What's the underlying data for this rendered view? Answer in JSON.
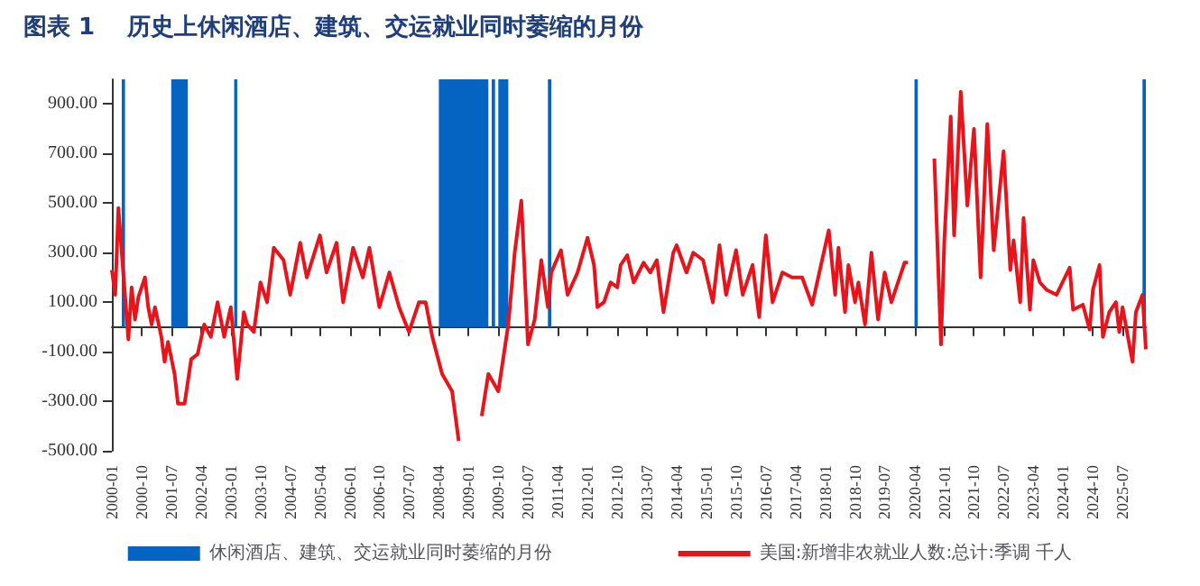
{
  "chart_data": {
    "type": "line",
    "title": "图表 1    历史上休闲酒店、建筑、交运就业同时萎缩的月份",
    "xlim": [
      "2000-01",
      "2026-02"
    ],
    "xticks": [
      "2000-01",
      "2000-10",
      "2001-07",
      "2002-04",
      "2003-01",
      "2003-10",
      "2004-07",
      "2005-04",
      "2006-01",
      "2006-10",
      "2007-07",
      "2008-04",
      "2009-01",
      "2009-10",
      "2010-07",
      "2011-04",
      "2012-01",
      "2012-10",
      "2013-07",
      "2014-04",
      "2015-01",
      "2015-10",
      "2016-07",
      "2017-04",
      "2018-01",
      "2018-10",
      "2019-07",
      "2020-04",
      "2021-01",
      "2021-10",
      "2022-07",
      "2023-04",
      "2024-01",
      "2024-10",
      "2025-07"
    ],
    "ylim": [
      -500,
      1000
    ],
    "yticks": [
      {
        "value": -500,
        "label": "-500.00"
      },
      {
        "value": -300,
        "label": "-300.00"
      },
      {
        "value": -100,
        "label": "-100.00"
      },
      {
        "value": 100,
        "label": "100.00"
      },
      {
        "value": 300,
        "label": "300.00"
      },
      {
        "value": 500,
        "label": "500.00"
      },
      {
        "value": 700,
        "label": "700.00"
      },
      {
        "value": 900,
        "label": "900.00"
      }
    ],
    "bands": [
      {
        "axis": "x",
        "from": "2000-04",
        "to": "2000-05",
        "label": "休闲酒店、建筑、交运就业同时萎缩的月份",
        "color": "#0563c1"
      },
      {
        "axis": "x",
        "from": "2001-07",
        "to": "2001-12",
        "color": "#0563c1"
      },
      {
        "axis": "x",
        "from": "2003-02",
        "to": "2003-03",
        "color": "#0563c1"
      },
      {
        "axis": "x",
        "from": "2008-04",
        "to": "2009-07",
        "color": "#0563c1"
      },
      {
        "axis": "x",
        "from": "2009-08",
        "to": "2009-09",
        "color": "#0563c1"
      },
      {
        "axis": "x",
        "from": "2009-10",
        "to": "2010-01",
        "color": "#0563c1"
      },
      {
        "axis": "x",
        "from": "2011-01",
        "to": "2011-02",
        "color": "#0563c1"
      },
      {
        "axis": "x",
        "from": "2020-04",
        "to": "2020-05",
        "color": "#0563c1"
      },
      {
        "axis": "x",
        "from": "2026-01",
        "to": "2026-02",
        "color": "#0563c1"
      }
    ],
    "grid": false,
    "legend": "bottom",
    "marker": "none",
    "line_style": "solid",
    "series": [
      {
        "name": "美国:新增非农就业人数:总计:季调 千人",
        "color": "#e8141c",
        "x": [
          "2000-01",
          "2000-02",
          "2000-03",
          "2000-04",
          "2000-06",
          "2000-07",
          "2000-08",
          "2000-09",
          "2000-11",
          "2000-12",
          "2001-01",
          "2001-02",
          "2001-04",
          "2001-05",
          "2001-06",
          "2001-08",
          "2001-09",
          "2001-11",
          "2002-01",
          "2002-03",
          "2002-05",
          "2002-07",
          "2002-09",
          "2002-11",
          "2003-01",
          "2003-03",
          "2003-05",
          "2003-06",
          "2003-08",
          "2003-10",
          "2003-12",
          "2004-02",
          "2004-05",
          "2004-07",
          "2004-10",
          "2004-12",
          "2005-04",
          "2005-06",
          "2005-09",
          "2005-11",
          "2006-02",
          "2006-05",
          "2006-07",
          "2006-10",
          "2007-01",
          "2007-04",
          "2007-07",
          "2007-10",
          "2007-12",
          "2008-02",
          "2008-05",
          "2008-08",
          "2008-10",
          "2008-12",
          "2009-02",
          "2009-05",
          "2009-07",
          "2009-10",
          "2010-01",
          "2010-03",
          "2010-05",
          "2010-07",
          "2010-09",
          "2010-11",
          "2011-01",
          "2011-02",
          "2011-05",
          "2011-07",
          "2011-10",
          "2012-01",
          "2012-03",
          "2012-04",
          "2012-06",
          "2012-08",
          "2012-10",
          "2012-11",
          "2013-01",
          "2013-03",
          "2013-06",
          "2013-08",
          "2013-10",
          "2013-12",
          "2014-03",
          "2014-04",
          "2014-07",
          "2014-09",
          "2014-12",
          "2015-03",
          "2015-05",
          "2015-07",
          "2015-10",
          "2015-12",
          "2016-03",
          "2016-05",
          "2016-07",
          "2016-09",
          "2016-12",
          "2017-03",
          "2017-06",
          "2017-09",
          "2017-11",
          "2018-02",
          "2018-04",
          "2018-05",
          "2018-07",
          "2018-08",
          "2018-10",
          "2018-11",
          "2019-01",
          "2019-03",
          "2019-05",
          "2019-07",
          "2019-09",
          "2019-11",
          "2020-01",
          "2020-02",
          "2020-03",
          "2020-04",
          "2020-05",
          "2020-08",
          "2020-10",
          "2020-12",
          "2021-01",
          "2021-03",
          "2021-04",
          "2021-06",
          "2021-08",
          "2021-10",
          "2021-12",
          "2022-02",
          "2022-04",
          "2022-07",
          "2022-09",
          "2022-10",
          "2022-12",
          "2023-01",
          "2023-03",
          "2023-04",
          "2023-06",
          "2023-08",
          "2023-11",
          "2024-03",
          "2024-04",
          "2024-07",
          "2024-09",
          "2024-10",
          "2024-12",
          "2025-01",
          "2025-03",
          "2025-05",
          "2025-06",
          "2025-07",
          "2025-09",
          "2025-10",
          "2025-11",
          "2026-01",
          "2026-02"
        ],
        "values": [
          230,
          130,
          480,
          300,
          -50,
          160,
          30,
          120,
          200,
          80,
          10,
          80,
          -40,
          -140,
          -60,
          -190,
          -310,
          -310,
          -130,
          -110,
          10,
          -40,
          100,
          -40,
          80,
          -210,
          60,
          10,
          -20,
          180,
          100,
          320,
          270,
          130,
          340,
          200,
          370,
          220,
          340,
          100,
          320,
          200,
          320,
          80,
          220,
          80,
          -20,
          100,
          100,
          -40,
          -190,
          -260,
          -460,
          null,
          null,
          -360,
          -190,
          -260,
          10,
          300,
          510,
          -70,
          30,
          270,
          80,
          220,
          310,
          130,
          220,
          360,
          250,
          80,
          100,
          180,
          160,
          250,
          290,
          180,
          260,
          220,
          270,
          60,
          300,
          330,
          220,
          300,
          270,
          100,
          330,
          130,
          310,
          130,
          250,
          40,
          370,
          100,
          220,
          200,
          200,
          90,
          210,
          390,
          130,
          320,
          60,
          250,
          100,
          180,
          10,
          300,
          30,
          220,
          100,
          180,
          260,
          260,
          null,
          null,
          null,
          null,
          680,
          -70,
          350,
          850,
          370,
          950,
          490,
          800,
          200,
          820,
          310,
          710,
          230,
          350,
          100,
          440,
          70,
          270,
          180,
          150,
          130,
          240,
          70,
          90,
          -10,
          150,
          250,
          -40,
          60,
          100,
          -20,
          80,
          -70,
          -140,
          60,
          130,
          -90
        ]
      }
    ]
  }
}
